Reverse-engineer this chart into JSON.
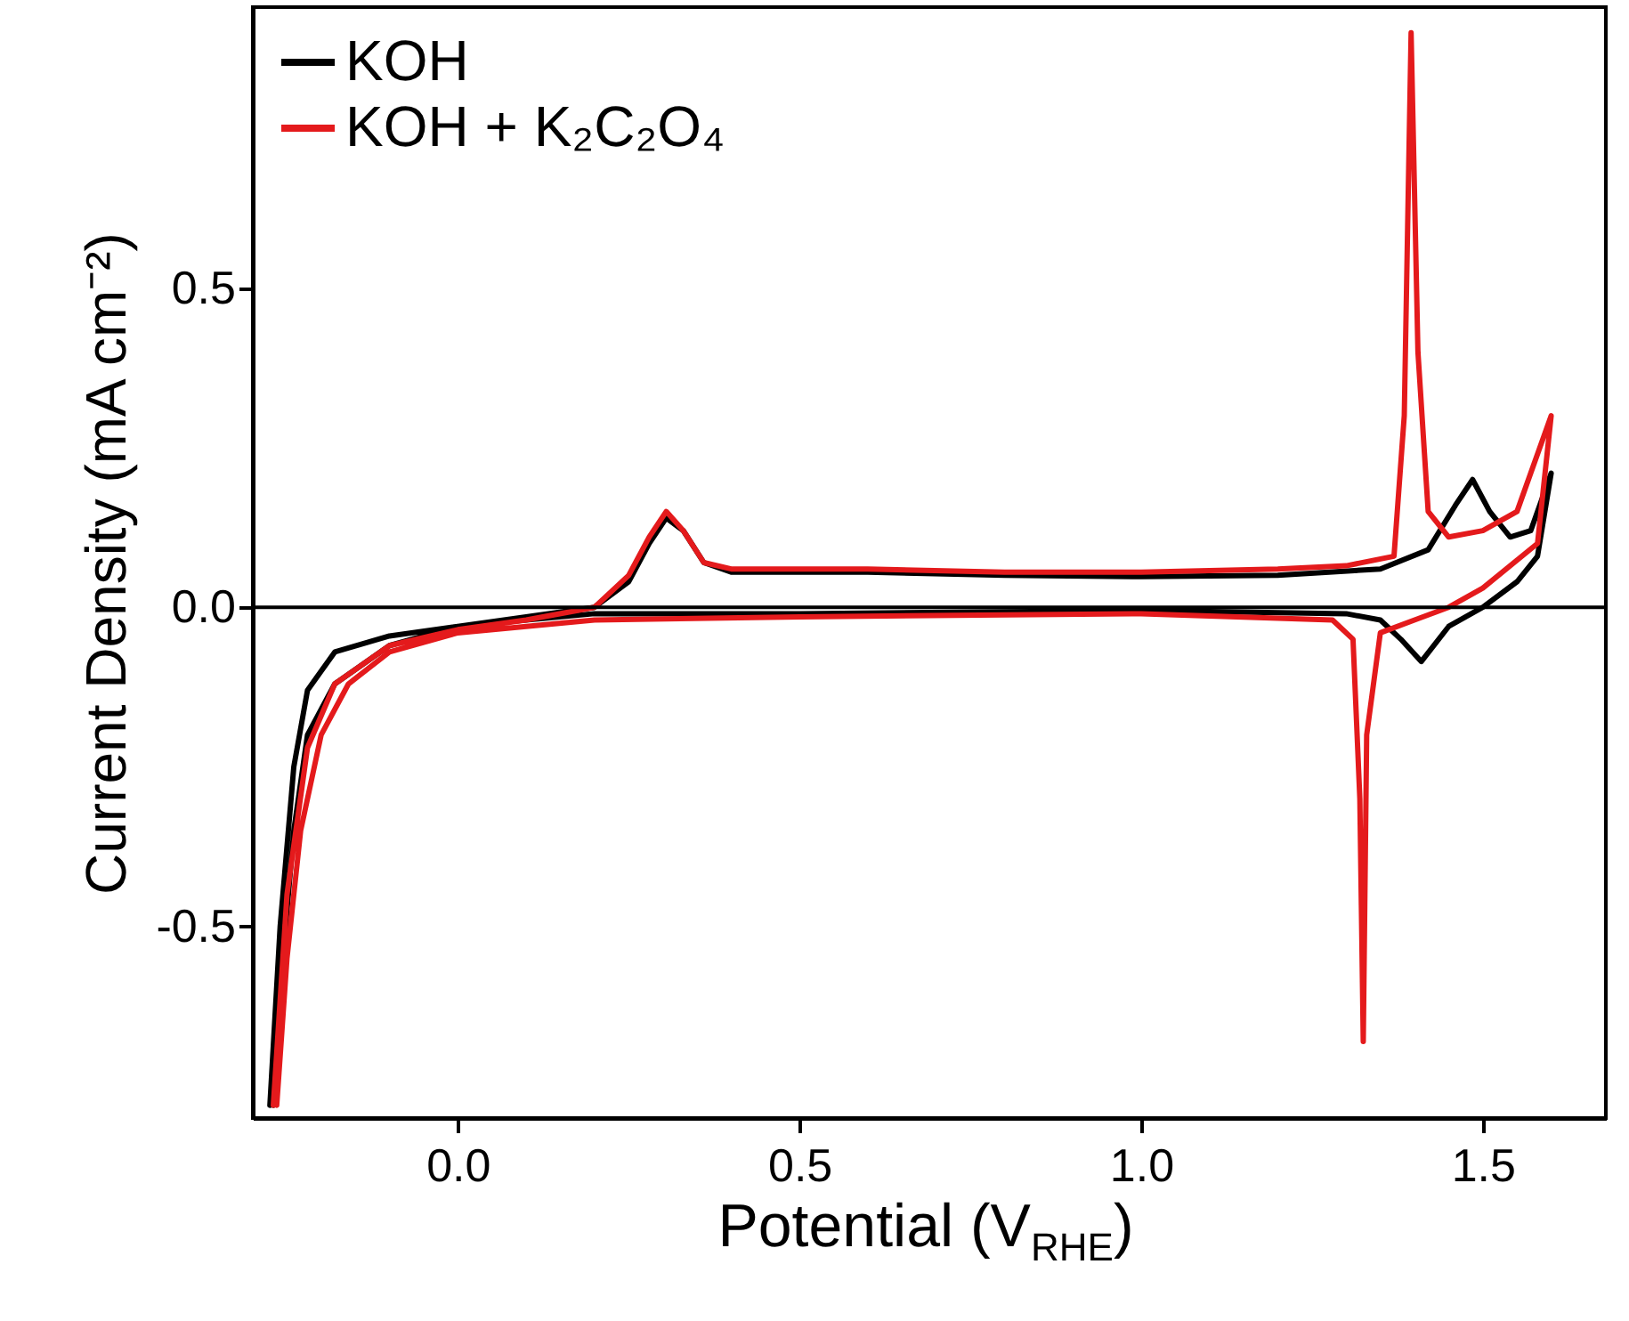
{
  "chart_data": {
    "type": "line",
    "xlabel": "Potential (V$_{RHE}$)",
    "ylabel": "Current Density (mA cm⁻²)",
    "xlim": [
      -0.3,
      1.68
    ],
    "ylim": [
      -0.8,
      0.94
    ],
    "xticks": [
      {
        "value": 0,
        "label": "0.0"
      },
      {
        "value": 0.5,
        "label": "0.5"
      },
      {
        "value": 1,
        "label": "1.0"
      },
      {
        "value": 1.5,
        "label": "1.5"
      }
    ],
    "yticks": [
      {
        "value": -0.5,
        "label": "-0.5"
      },
      {
        "value": 0,
        "label": "0.0"
      },
      {
        "value": 0.5,
        "label": "0.5"
      }
    ],
    "legend": "top left",
    "line_style": "solid",
    "ref_lines": [
      {
        "axis": "y",
        "value": 0,
        "color": "#000000"
      }
    ],
    "series": [
      {
        "name": "KOH",
        "color": "#000000",
        "x": [
          -0.275,
          -0.26,
          -0.24,
          -0.22,
          -0.18,
          -0.1,
          0.0,
          0.1,
          0.2,
          0.25,
          0.28,
          0.305,
          0.33,
          0.36,
          0.4,
          0.6,
          0.8,
          1.0,
          1.2,
          1.35,
          1.42,
          1.46,
          1.485,
          1.51,
          1.54,
          1.57,
          1.6,
          1.58,
          1.55,
          1.5,
          1.45,
          1.41,
          1.38,
          1.35,
          1.3,
          1.0,
          0.5,
          0.2,
          0.0,
          -0.1,
          -0.18,
          -0.22,
          -0.24,
          -0.26,
          -0.27
        ],
        "values": [
          -0.78,
          -0.5,
          -0.25,
          -0.13,
          -0.07,
          -0.045,
          -0.03,
          -0.015,
          0.0,
          0.04,
          0.1,
          0.14,
          0.12,
          0.07,
          0.055,
          0.055,
          0.05,
          0.048,
          0.05,
          0.06,
          0.09,
          0.16,
          0.2,
          0.15,
          0.11,
          0.12,
          0.21,
          0.08,
          0.04,
          0.0,
          -0.03,
          -0.085,
          -0.05,
          -0.02,
          -0.01,
          -0.005,
          -0.01,
          -0.01,
          -0.03,
          -0.06,
          -0.12,
          -0.2,
          -0.35,
          -0.6,
          -0.78
        ]
      },
      {
        "name": "KOH + K₂C₂O₄",
        "color": "#e41a1c",
        "x": [
          -0.27,
          -0.25,
          -0.22,
          -0.18,
          -0.1,
          0.0,
          0.1,
          0.2,
          0.25,
          0.28,
          0.305,
          0.33,
          0.36,
          0.4,
          0.6,
          0.8,
          1.0,
          1.2,
          1.3,
          1.37,
          1.385,
          1.395,
          1.405,
          1.42,
          1.45,
          1.5,
          1.55,
          1.6,
          1.58,
          1.5,
          1.45,
          1.4,
          1.35,
          1.33,
          1.325,
          1.32,
          1.31,
          1.28,
          1.0,
          0.5,
          0.2,
          0.0,
          -0.1,
          -0.16,
          -0.2,
          -0.23,
          -0.25,
          -0.265
        ],
        "values": [
          -0.78,
          -0.45,
          -0.22,
          -0.12,
          -0.06,
          -0.035,
          -0.02,
          0.0,
          0.05,
          0.11,
          0.15,
          0.12,
          0.07,
          0.06,
          0.06,
          0.055,
          0.055,
          0.06,
          0.065,
          0.08,
          0.3,
          0.9,
          0.4,
          0.15,
          0.11,
          0.12,
          0.15,
          0.3,
          0.1,
          0.03,
          0.0,
          -0.02,
          -0.04,
          -0.2,
          -0.68,
          -0.3,
          -0.05,
          -0.02,
          -0.01,
          -0.015,
          -0.02,
          -0.04,
          -0.07,
          -0.12,
          -0.2,
          -0.35,
          -0.55,
          -0.78
        ]
      }
    ]
  }
}
